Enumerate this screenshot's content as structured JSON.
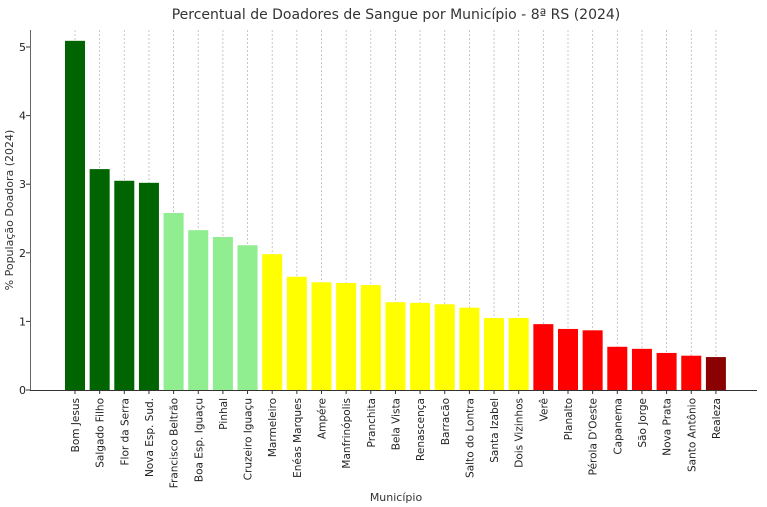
{
  "chart_data": {
    "type": "bar",
    "title": "Percentual de Doadores de Sangue por Município - 8ª RS (2024)",
    "xlabel": "Município",
    "ylabel": "% População Doadora (2024)",
    "ylim": [
      0,
      5.25
    ],
    "yticks": [
      0,
      1,
      2,
      3,
      4,
      5
    ],
    "grid": "vertical dashed",
    "categories": [
      "Bom Jesus",
      "Salgado Filho",
      "Flor da Serra",
      "Nova Esp. Sud.",
      "Francisco Beltrão",
      "Boa Esp. Iguaçu",
      "Pinhal",
      "Cruzeiro Iguaçu",
      "Marmeleiro",
      "Enéas Marques",
      "Ampére",
      "Manfrinópolis",
      "Pranchita",
      "Bela Vista",
      "Renascença",
      "Barracão",
      "Salto do Lontra",
      "Santa Izabel",
      "Dois Vizinhos",
      "Verê",
      "Planalto",
      "Pérola D'Oeste",
      "Capanema",
      "São Jorge",
      "Nova Prata",
      "Santo Antônio",
      "Realeza"
    ],
    "values": [
      5.09,
      3.22,
      3.05,
      3.02,
      2.58,
      2.33,
      2.23,
      2.11,
      1.98,
      1.65,
      1.57,
      1.56,
      1.53,
      1.28,
      1.27,
      1.25,
      1.2,
      1.05,
      1.05,
      0.96,
      0.89,
      0.87,
      0.63,
      0.6,
      0.54,
      0.5,
      0.48
    ],
    "colors": [
      "#006400",
      "#006400",
      "#006400",
      "#006400",
      "#90ee90",
      "#90ee90",
      "#90ee90",
      "#90ee90",
      "#ffff00",
      "#ffff00",
      "#ffff00",
      "#ffff00",
      "#ffff00",
      "#ffff00",
      "#ffff00",
      "#ffff00",
      "#ffff00",
      "#ffff00",
      "#ffff00",
      "#ff0000",
      "#ff0000",
      "#ff0000",
      "#ff0000",
      "#ff0000",
      "#ff0000",
      "#ff0000",
      "#8b0000"
    ]
  }
}
